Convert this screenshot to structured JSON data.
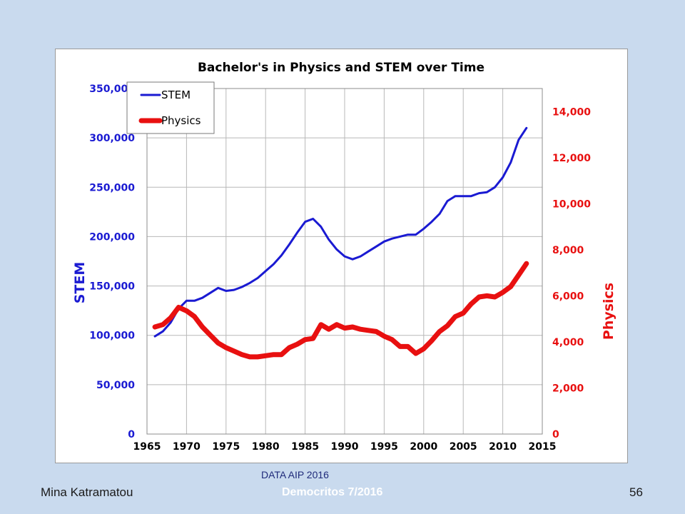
{
  "slide": {
    "author": "Mina Katramatou",
    "source_note": "DATA AIP  2016",
    "watermark": "Democritos  7/2016",
    "page_number": "56"
  },
  "colors": {
    "stem": "#1a1ad2",
    "physics": "#e81010",
    "grid": "#b8b8b8",
    "title": "#000000"
  },
  "chart_data": {
    "type": "line",
    "title": "Bachelor's in Physics and STEM over Time",
    "xlabel": "",
    "xlim": [
      1965,
      2015
    ],
    "x_ticks": [
      1965,
      1970,
      1975,
      1980,
      1985,
      1990,
      1995,
      2000,
      2005,
      2010,
      2015
    ],
    "x_tick_labels": [
      "1965",
      "1970",
      "1975",
      "1980",
      "1985",
      "1990",
      "1995",
      "2000",
      "2005",
      "2010",
      "2015"
    ],
    "y_left": {
      "label": "STEM",
      "lim": [
        0,
        350000
      ],
      "ticks": [
        0,
        50000,
        100000,
        150000,
        200000,
        250000,
        300000,
        350000
      ],
      "tick_labels": [
        "0",
        "50,000",
        "100,000",
        "150,000",
        "200,000",
        "250,000",
        "300,000",
        "350,000"
      ]
    },
    "y_right": {
      "label": "Physics",
      "lim": [
        0,
        15000
      ],
      "ticks": [
        0,
        2000,
        4000,
        6000,
        8000,
        10000,
        12000,
        14000
      ],
      "tick_labels": [
        "0",
        "2,000",
        "4,000",
        "6,000",
        "8,000",
        "10,000",
        "12,000",
        "14,000"
      ]
    },
    "grid": true,
    "legend_position": "top-left",
    "series": [
      {
        "name": "STEM",
        "axis": "left",
        "x": [
          1966,
          1967,
          1968,
          1969,
          1970,
          1971,
          1972,
          1973,
          1974,
          1975,
          1976,
          1977,
          1978,
          1979,
          1980,
          1981,
          1982,
          1983,
          1984,
          1985,
          1986,
          1987,
          1988,
          1989,
          1990,
          1991,
          1992,
          1993,
          1994,
          1995,
          1996,
          1997,
          1998,
          1999,
          2000,
          2001,
          2002,
          2003,
          2004,
          2005,
          2006,
          2007,
          2008,
          2009,
          2010,
          2011,
          2012,
          2013
        ],
        "values": [
          99000,
          104000,
          113000,
          127000,
          135000,
          135000,
          138000,
          143000,
          148000,
          145000,
          146000,
          149000,
          153000,
          158000,
          165000,
          172000,
          181000,
          192000,
          204000,
          215000,
          218000,
          210000,
          197000,
          187000,
          180000,
          177000,
          180000,
          185000,
          190000,
          195000,
          198000,
          200000,
          202000,
          202000,
          208000,
          215000,
          223000,
          236000,
          241000,
          241000,
          241000,
          244000,
          245000,
          250000,
          260000,
          275000,
          298000,
          310000
        ]
      },
      {
        "name": "Physics",
        "axis": "right",
        "x": [
          1966,
          1967,
          1968,
          1969,
          1970,
          1971,
          1972,
          1973,
          1974,
          1975,
          1976,
          1977,
          1978,
          1979,
          1980,
          1981,
          1982,
          1983,
          1984,
          1985,
          1986,
          1987,
          1988,
          1989,
          1990,
          1991,
          1992,
          1993,
          1994,
          1995,
          1996,
          1997,
          1998,
          1999,
          2000,
          2001,
          2002,
          2003,
          2004,
          2005,
          2006,
          2007,
          2008,
          2009,
          2010,
          2011,
          2012,
          2013
        ],
        "values": [
          4650,
          4750,
          5050,
          5500,
          5350,
          5100,
          4650,
          4300,
          3950,
          3750,
          3600,
          3450,
          3350,
          3350,
          3400,
          3450,
          3450,
          3750,
          3900,
          4100,
          4150,
          4750,
          4550,
          4750,
          4600,
          4650,
          4550,
          4500,
          4450,
          4250,
          4100,
          3800,
          3800,
          3500,
          3700,
          4050,
          4450,
          4700,
          5100,
          5250,
          5650,
          5950,
          6000,
          5950,
          6150,
          6400,
          6900,
          7400
        ]
      }
    ]
  }
}
